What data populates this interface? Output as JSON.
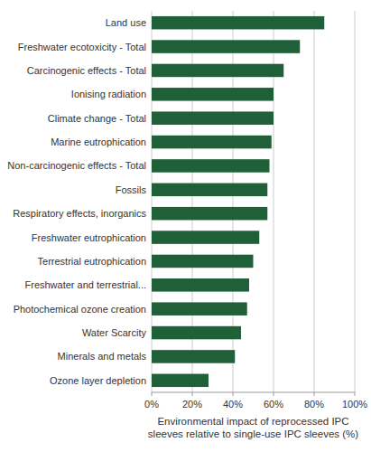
{
  "chart_data": {
    "type": "bar",
    "orientation": "horizontal",
    "categories": [
      "Land use",
      "Freshwater ecotoxicity - Total",
      "Carcinogenic effects - Total",
      "Ionising radiation",
      "Climate change - Total",
      "Marine eutrophication",
      "Non-carcinogenic effects - Total",
      "Fossils",
      "Respiratory effects, inorganics",
      "Freshwater eutrophication",
      "Terrestrial eutrophication",
      "Freshwater and terrestrial...",
      "Photochemical ozone creation",
      "Water Scarcity",
      "Minerals and metals",
      "Ozone layer depletion"
    ],
    "values": [
      85,
      73,
      65,
      60,
      60,
      59,
      58,
      57,
      57,
      53,
      50,
      48,
      47,
      44,
      41,
      28
    ],
    "color": "#1f6038",
    "xlabel": "Environmental impact of reprocessed IPC\nsleeves relative to single-use IPC sleeves (%)",
    "xlim": [
      0,
      100
    ],
    "xticks": [
      {
        "value": 0,
        "label": "0%"
      },
      {
        "value": 20,
        "label": "20%"
      },
      {
        "value": 40,
        "label": "40%"
      },
      {
        "value": 60,
        "label": "60%"
      },
      {
        "value": 80,
        "label": "80%"
      },
      {
        "value": 100,
        "label": "100%"
      }
    ],
    "grid": true
  }
}
